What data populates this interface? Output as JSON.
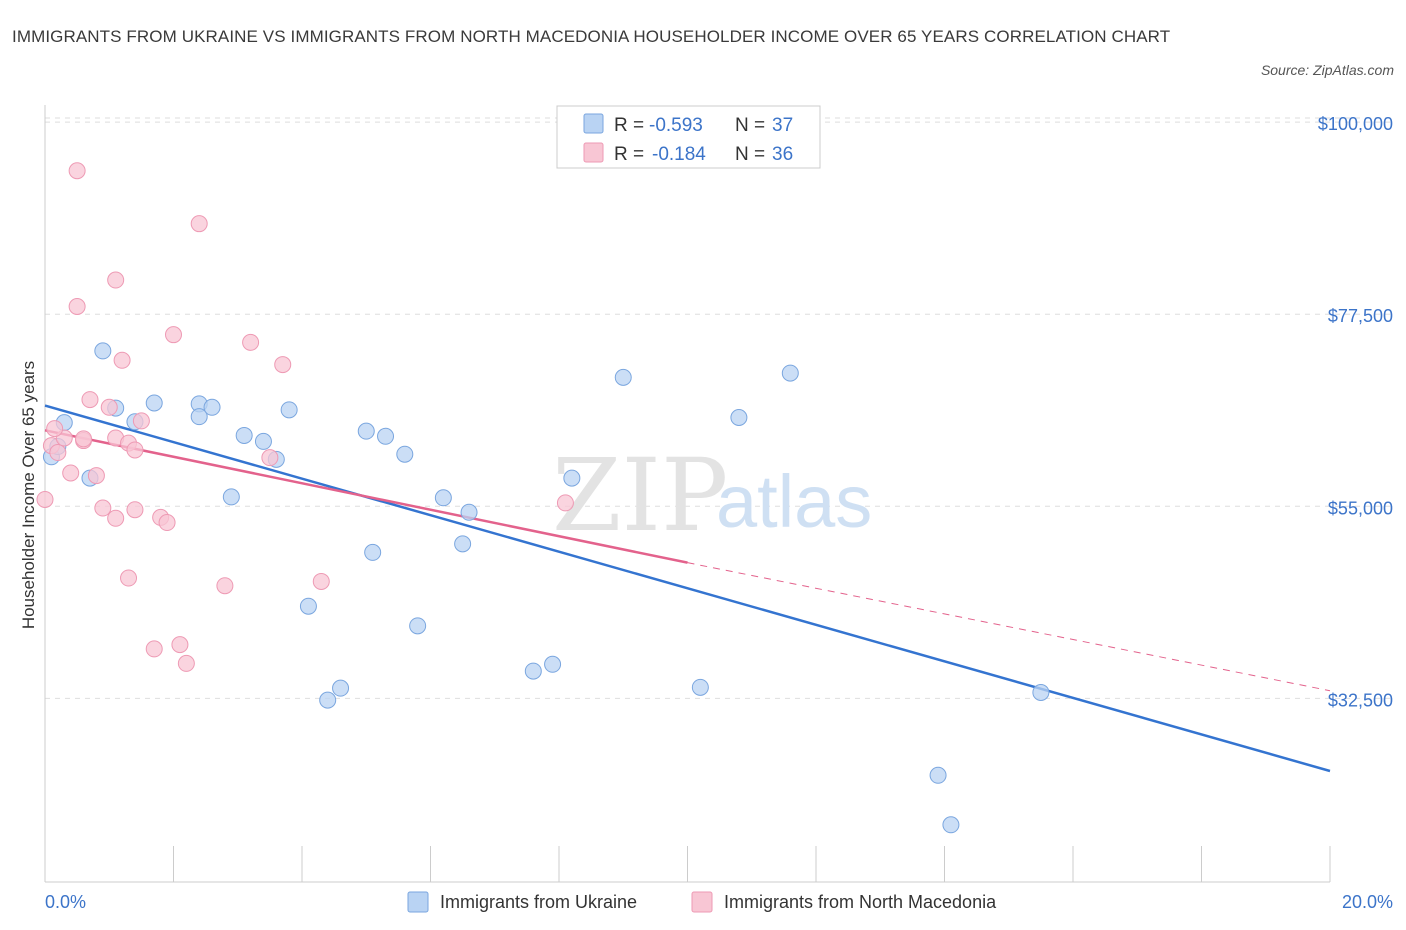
{
  "title": "IMMIGRANTS FROM UKRAINE VS IMMIGRANTS FROM NORTH MACEDONIA HOUSEHOLDER INCOME OVER 65 YEARS CORRELATION CHART",
  "source": "Source: ZipAtlas.com",
  "watermark": {
    "zip": "ZIP",
    "atlas": "atlas"
  },
  "colors": {
    "ukraine_fill": "#b9d3f3",
    "ukraine_stroke": "#7aa6df",
    "ukraine_line": "#3474d0",
    "macedonia_fill": "#f8c6d4",
    "macedonia_stroke": "#ee9ab4",
    "macedonia_line": "#e3628c",
    "grid": "#dedede",
    "axis_text": "#3c74c9"
  },
  "legend": {
    "rows": [
      {
        "r_label": "R =",
        "r_value": "-0.593",
        "n_label": "N =",
        "n_value": "37"
      },
      {
        "r_label": "R =",
        "r_value": "-0.184",
        "n_label": "N =",
        "n_value": "36"
      }
    ]
  },
  "chart_data": {
    "type": "scatter",
    "ylabel": "Householder Income Over 65 years",
    "xlim": [
      0,
      20
    ],
    "ylim": [
      11000,
      102000
    ],
    "x_tick_labels": [
      "0.0%",
      "20.0%"
    ],
    "y_ticks": [
      {
        "value": 100000,
        "label": "$100,000"
      },
      {
        "value": 77500,
        "label": "$77,500"
      },
      {
        "value": 55000,
        "label": "$55,000"
      },
      {
        "value": 32500,
        "label": "$32,500"
      }
    ],
    "legend_position": "top-center",
    "grid": true,
    "series": [
      {
        "name": "Immigrants from Ukraine",
        "points": [
          [
            0.1,
            60800
          ],
          [
            0.3,
            64800
          ],
          [
            0.7,
            58300
          ],
          [
            0.9,
            73200
          ],
          [
            1.1,
            66500
          ],
          [
            1.4,
            64900
          ],
          [
            1.7,
            67100
          ],
          [
            2.4,
            67000
          ],
          [
            2.4,
            65500
          ],
          [
            2.6,
            66600
          ],
          [
            2.9,
            56100
          ],
          [
            3.1,
            63300
          ],
          [
            3.4,
            62600
          ],
          [
            3.6,
            60500
          ],
          [
            3.8,
            66300
          ],
          [
            4.1,
            43300
          ],
          [
            4.4,
            32300
          ],
          [
            4.6,
            33700
          ],
          [
            5.0,
            63800
          ],
          [
            5.1,
            49600
          ],
          [
            5.3,
            63200
          ],
          [
            5.8,
            41000
          ],
          [
            5.6,
            61100
          ],
          [
            6.2,
            56000
          ],
          [
            6.5,
            50600
          ],
          [
            6.6,
            54300
          ],
          [
            7.6,
            35700
          ],
          [
            7.9,
            36500
          ],
          [
            8.2,
            58300
          ],
          [
            9.0,
            70100
          ],
          [
            10.2,
            33800
          ],
          [
            10.8,
            65400
          ],
          [
            11.6,
            70600
          ],
          [
            13.9,
            23500
          ],
          [
            14.1,
            17700
          ],
          [
            15.5,
            33200
          ],
          [
            0.2,
            62000
          ]
        ]
      },
      {
        "name": "Immigrants from North Macedonia",
        "points": [
          [
            0.0,
            55800
          ],
          [
            0.1,
            62100
          ],
          [
            0.2,
            61300
          ],
          [
            0.3,
            63000
          ],
          [
            0.4,
            58900
          ],
          [
            0.5,
            78400
          ],
          [
            0.5,
            94300
          ],
          [
            0.6,
            62700
          ],
          [
            0.7,
            67500
          ],
          [
            0.8,
            58600
          ],
          [
            0.9,
            54800
          ],
          [
            1.0,
            66600
          ],
          [
            1.1,
            81500
          ],
          [
            1.1,
            63000
          ],
          [
            1.1,
            53600
          ],
          [
            1.2,
            72100
          ],
          [
            1.3,
            62400
          ],
          [
            1.3,
            46600
          ],
          [
            1.4,
            61600
          ],
          [
            1.4,
            54600
          ],
          [
            1.5,
            65000
          ],
          [
            1.7,
            38300
          ],
          [
            1.8,
            53700
          ],
          [
            1.9,
            53100
          ],
          [
            2.0,
            75100
          ],
          [
            2.1,
            38800
          ],
          [
            2.2,
            36600
          ],
          [
            2.4,
            88100
          ],
          [
            2.8,
            45700
          ],
          [
            3.2,
            74200
          ],
          [
            3.5,
            60700
          ],
          [
            3.7,
            71600
          ],
          [
            4.3,
            46200
          ],
          [
            8.1,
            55400
          ],
          [
            0.15,
            64100
          ],
          [
            0.6,
            62900
          ]
        ]
      }
    ],
    "trend_lines": [
      {
        "series": "Immigrants from Ukraine",
        "start": [
          0,
          66800
        ],
        "end": [
          20,
          24000
        ],
        "style": "solid"
      },
      {
        "series": "Immigrants from North Macedonia",
        "start": [
          0,
          63900
        ],
        "end": [
          10,
          48400
        ],
        "style": "solid"
      },
      {
        "series": "Immigrants from North Macedonia",
        "start": [
          10,
          48400
        ],
        "end": [
          20,
          33400
        ],
        "style": "dashed"
      }
    ]
  }
}
